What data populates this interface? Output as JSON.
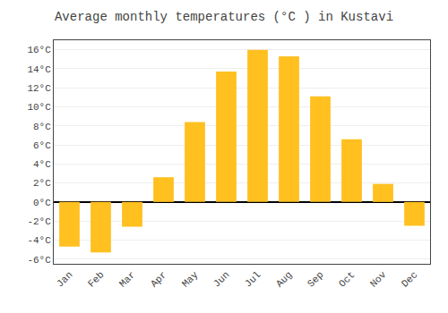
{
  "chart_data": {
    "type": "bar",
    "title": "Average monthly temperatures (°C ) in Kustavi",
    "categories": [
      "Jan",
      "Feb",
      "Mar",
      "Apr",
      "May",
      "Jun",
      "Jul",
      "Aug",
      "Sep",
      "Oct",
      "Nov",
      "Dec"
    ],
    "values": [
      -4.7,
      -5.3,
      -2.6,
      2.6,
      8.4,
      13.7,
      16.0,
      15.3,
      11.1,
      6.6,
      1.9,
      -2.5
    ],
    "color": "#FFC020",
    "ylim": [
      -6.5,
      17.0
    ],
    "yticks": [
      {
        "value": -6,
        "label": "-6°C"
      },
      {
        "value": -4,
        "label": "-4°C"
      },
      {
        "value": -2,
        "label": "-2°C"
      },
      {
        "value": 0,
        "label": "0°C"
      },
      {
        "value": 2,
        "label": "2°C"
      },
      {
        "value": 4,
        "label": "4°C"
      },
      {
        "value": 6,
        "label": "6°C"
      },
      {
        "value": 8,
        "label": "8°C"
      },
      {
        "value": 10,
        "label": "10°C"
      },
      {
        "value": 12,
        "label": "12°C"
      },
      {
        "value": 14,
        "label": "14°C"
      },
      {
        "value": 16,
        "label": "16°C"
      }
    ],
    "grid": true
  }
}
